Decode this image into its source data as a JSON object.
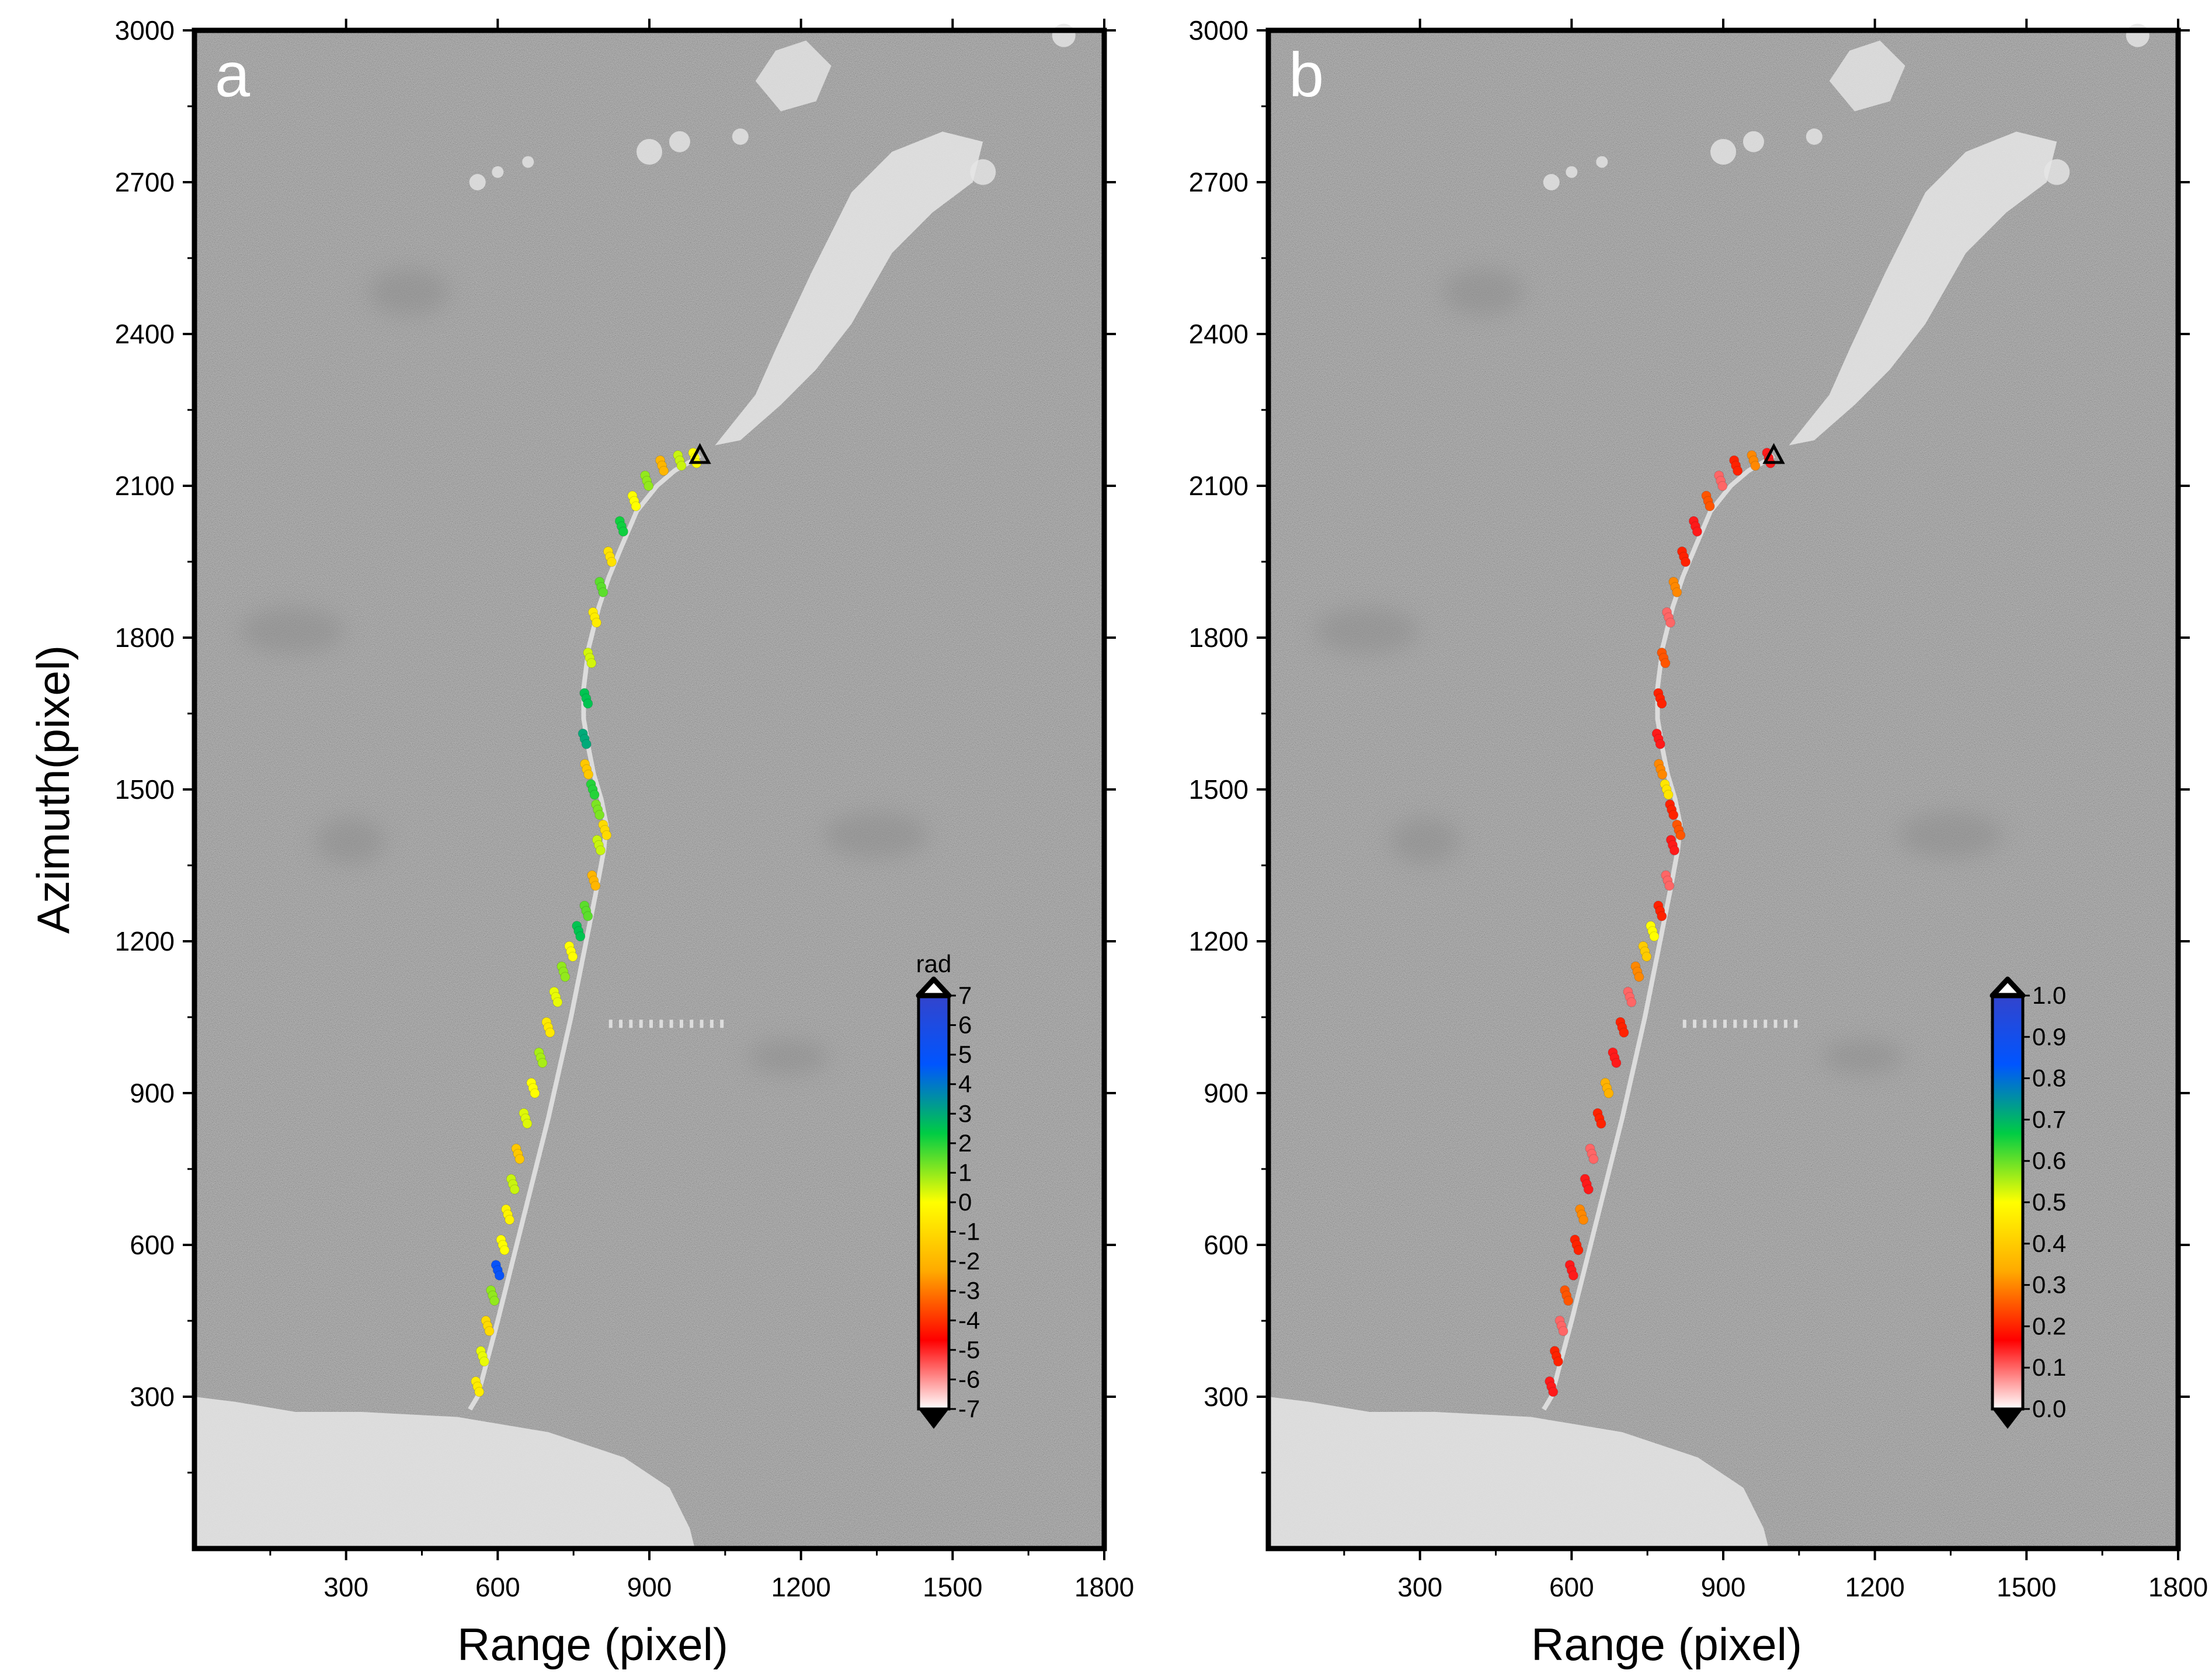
{
  "figure": {
    "ylabel": "Azimuth(pixel)",
    "colors": {
      "land": "#e6e6e6",
      "bridge": "#dcdcdc",
      "frame": "#000000",
      "text": "#000000"
    }
  },
  "chart_data": [
    {
      "type": "scatter",
      "panel_label": "a",
      "xlabel": "Range (pixel)",
      "ylabel": "Azimuth(pixel)",
      "xlim": [
        0,
        1800
      ],
      "ylim": [
        0,
        3000
      ],
      "xticks": [
        300,
        600,
        900,
        1200,
        1500,
        1800
      ],
      "yticks": [
        300,
        600,
        900,
        1200,
        1500,
        1800,
        2100,
        2400,
        2700,
        3000
      ],
      "background": "SAR amplitude image (grayscale)",
      "colorbar": {
        "title": "rad",
        "min": -7,
        "max": 7,
        "tick_labels": [
          "7",
          "6",
          "5",
          "4",
          "3",
          "2",
          "1",
          "0",
          "-1",
          "-2",
          "-3",
          "-4",
          "-5",
          "-6",
          "-7"
        ],
        "colors": [
          "#ffffff",
          "#ff0000",
          "#ffaa00",
          "#ffff00",
          "#00cc44",
          "#0055ff",
          "#3344cc"
        ]
      },
      "reference_point": {
        "x": 1000,
        "y": 2160,
        "marker": "triangle"
      },
      "bridge_path": {
        "x": [
          545,
          560,
          600,
          650,
          700,
          745,
          775,
          795,
          810,
          815,
          805,
          790,
          780,
          770,
          770,
          780,
          800,
          820,
          845,
          875,
          915,
          950,
          985,
          1000
        ],
        "y": [
          275,
          300,
          450,
          650,
          850,
          1050,
          1200,
          1300,
          1380,
          1430,
          1480,
          1530,
          1580,
          1640,
          1700,
          1780,
          1860,
          1920,
          1980,
          2050,
          2100,
          2130,
          2150,
          2160
        ]
      },
      "series": [
        {
          "name": "points",
          "color_scale": "phase",
          "x": [
            560,
            570,
            580,
            590,
            600,
            610,
            620,
            630,
            640,
            655,
            670,
            685,
            700,
            715,
            730,
            745,
            760,
            775,
            790,
            800,
            812,
            798,
            788,
            776,
            772,
            775,
            782,
            792,
            805,
            822,
            845,
            870,
            895,
            925,
            960,
            990
          ],
          "y": [
            320,
            380,
            440,
            500,
            550,
            600,
            660,
            720,
            780,
            850,
            910,
            970,
            1030,
            1090,
            1140,
            1180,
            1220,
            1260,
            1320,
            1390,
            1420,
            1460,
            1500,
            1540,
            1600,
            1680,
            1760,
            1840,
            1900,
            1960,
            2020,
            2070,
            2110,
            2140,
            2150,
            2155
          ],
          "values": [
            -0.5,
            0.2,
            -1,
            1,
            5,
            0,
            -0.3,
            0.5,
            -1.5,
            0.3,
            0,
            0.8,
            -0.6,
            0.2,
            1,
            0,
            2.5,
            1.5,
            -2,
            0.5,
            -1,
            1.2,
            2,
            -1.5,
            3,
            2.5,
            0.4,
            -0.5,
            1.5,
            -0.8,
            2.2,
            0,
            1,
            -2,
            0.5,
            0
          ]
        }
      ]
    },
    {
      "type": "scatter",
      "panel_label": "b",
      "xlabel": "Range (pixel)",
      "ylabel": "",
      "xlim": [
        0,
        1800
      ],
      "ylim": [
        0,
        3000
      ],
      "xticks": [
        300,
        600,
        900,
        1200,
        1500,
        1800
      ],
      "yticks": [
        300,
        600,
        900,
        1200,
        1500,
        1800,
        2100,
        2400,
        2700,
        3000
      ],
      "background": "SAR amplitude image (grayscale)",
      "colorbar": {
        "title": "",
        "min": 0.0,
        "max": 1.0,
        "tick_labels": [
          "1.0",
          "0.9",
          "0.8",
          "0.7",
          "0.6",
          "0.5",
          "0.4",
          "0.3",
          "0.2",
          "0.1",
          "0.0"
        ],
        "colors": [
          "#ffffff",
          "#ff0000",
          "#ffaa00",
          "#ffff00",
          "#00cc44",
          "#0055ff",
          "#3344cc"
        ]
      },
      "reference_point": {
        "x": 1000,
        "y": 2160,
        "marker": "triangle"
      },
      "bridge_path": {
        "x": [
          545,
          560,
          600,
          650,
          700,
          745,
          775,
          795,
          810,
          815,
          805,
          790,
          780,
          770,
          770,
          780,
          800,
          820,
          845,
          875,
          915,
          950,
          985,
          1000
        ],
        "y": [
          275,
          300,
          450,
          650,
          850,
          1050,
          1200,
          1300,
          1380,
          1430,
          1480,
          1530,
          1580,
          1640,
          1700,
          1780,
          1860,
          1920,
          1980,
          2050,
          2100,
          2130,
          2150,
          2160
        ]
      },
      "series": [
        {
          "name": "points",
          "color_scale": "coherence",
          "x": [
            560,
            570,
            580,
            590,
            600,
            610,
            620,
            630,
            640,
            655,
            670,
            685,
            700,
            715,
            730,
            745,
            760,
            775,
            790,
            800,
            812,
            798,
            788,
            776,
            772,
            775,
            782,
            792,
            805,
            822,
            845,
            870,
            895,
            925,
            960,
            990
          ],
          "y": [
            320,
            380,
            440,
            500,
            550,
            600,
            660,
            720,
            780,
            850,
            910,
            970,
            1030,
            1090,
            1140,
            1180,
            1220,
            1260,
            1320,
            1390,
            1420,
            1460,
            1500,
            1540,
            1600,
            1680,
            1760,
            1840,
            1900,
            1960,
            2020,
            2070,
            2110,
            2140,
            2150,
            2155
          ],
          "values": [
            0.15,
            0.2,
            0.1,
            0.25,
            0.15,
            0.2,
            0.3,
            0.15,
            0.1,
            0.2,
            0.35,
            0.15,
            0.2,
            0.1,
            0.3,
            0.4,
            0.5,
            0.2,
            0.1,
            0.15,
            0.25,
            0.2,
            0.45,
            0.3,
            0.15,
            0.2,
            0.25,
            0.1,
            0.3,
            0.2,
            0.15,
            0.25,
            0.1,
            0.2,
            0.3,
            0.15
          ]
        }
      ]
    }
  ]
}
